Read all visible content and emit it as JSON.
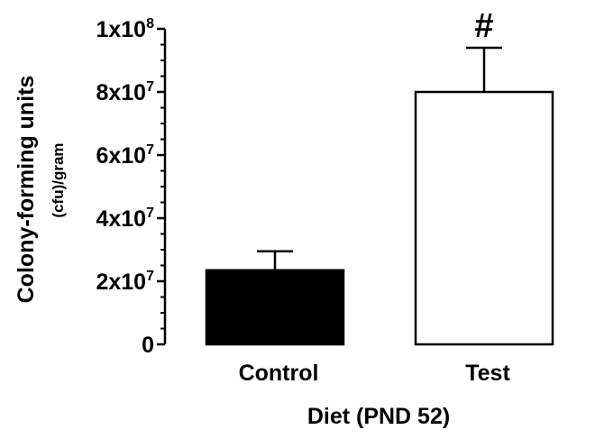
{
  "chart_data": {
    "type": "bar",
    "categories": [
      "Control",
      "Test"
    ],
    "values": [
      23500000,
      80000000
    ],
    "errors": [
      6000000,
      14000000
    ],
    "bar_fills": [
      "#000000",
      "#ffffff"
    ],
    "ylim": [
      0,
      100000000
    ],
    "yticks": [
      {
        "value": 0,
        "base": "0",
        "exp": ""
      },
      {
        "value": 20000000,
        "base": "2x10",
        "exp": "7"
      },
      {
        "value": 40000000,
        "base": "4x10",
        "exp": "7"
      },
      {
        "value": 60000000,
        "base": "6x10",
        "exp": "7"
      },
      {
        "value": 80000000,
        "base": "8x10",
        "exp": "7"
      },
      {
        "value": 100000000,
        "base": "1x10",
        "exp": "8"
      }
    ],
    "ylabel": "Colony-forming units",
    "ylabel_sub": "(cfu)/gram",
    "xlabel": "Diet (PND 52)",
    "annotations": [
      {
        "category": "Test",
        "text": "#"
      }
    ],
    "grid": false,
    "legend": "none"
  }
}
